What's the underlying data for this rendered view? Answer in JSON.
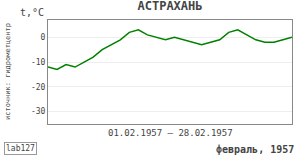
{
  "chart_data": {
    "type": "line",
    "title": "АСТРАХАНЬ",
    "x_label": "01.02.1957 – 28.02.1957",
    "y_label": "t,°C",
    "annotations": [
      "lab127",
      "февраль, 1957",
      "источник: гидрометцентр"
    ],
    "x": [
      1,
      2,
      3,
      4,
      5,
      6,
      7,
      8,
      9,
      10,
      11,
      12,
      13,
      14,
      15,
      16,
      17,
      18,
      19,
      20,
      21,
      22,
      23,
      24,
      25,
      26,
      27,
      28
    ],
    "values": [
      -12,
      -13,
      -11,
      -12,
      -10,
      -8,
      -5,
      -3,
      -1,
      2,
      3,
      1,
      0,
      -1,
      0,
      -1,
      -2,
      -3,
      -2,
      -1,
      2,
      3,
      1,
      -1,
      -2,
      -2,
      -1,
      0
    ],
    "color": "#008000",
    "xlim": [
      1,
      28
    ],
    "ylim": [
      -35,
      7
    ],
    "yticks": [
      0,
      -10,
      -20,
      -30
    ],
    "grid": true,
    "tick_labels": "y"
  }
}
